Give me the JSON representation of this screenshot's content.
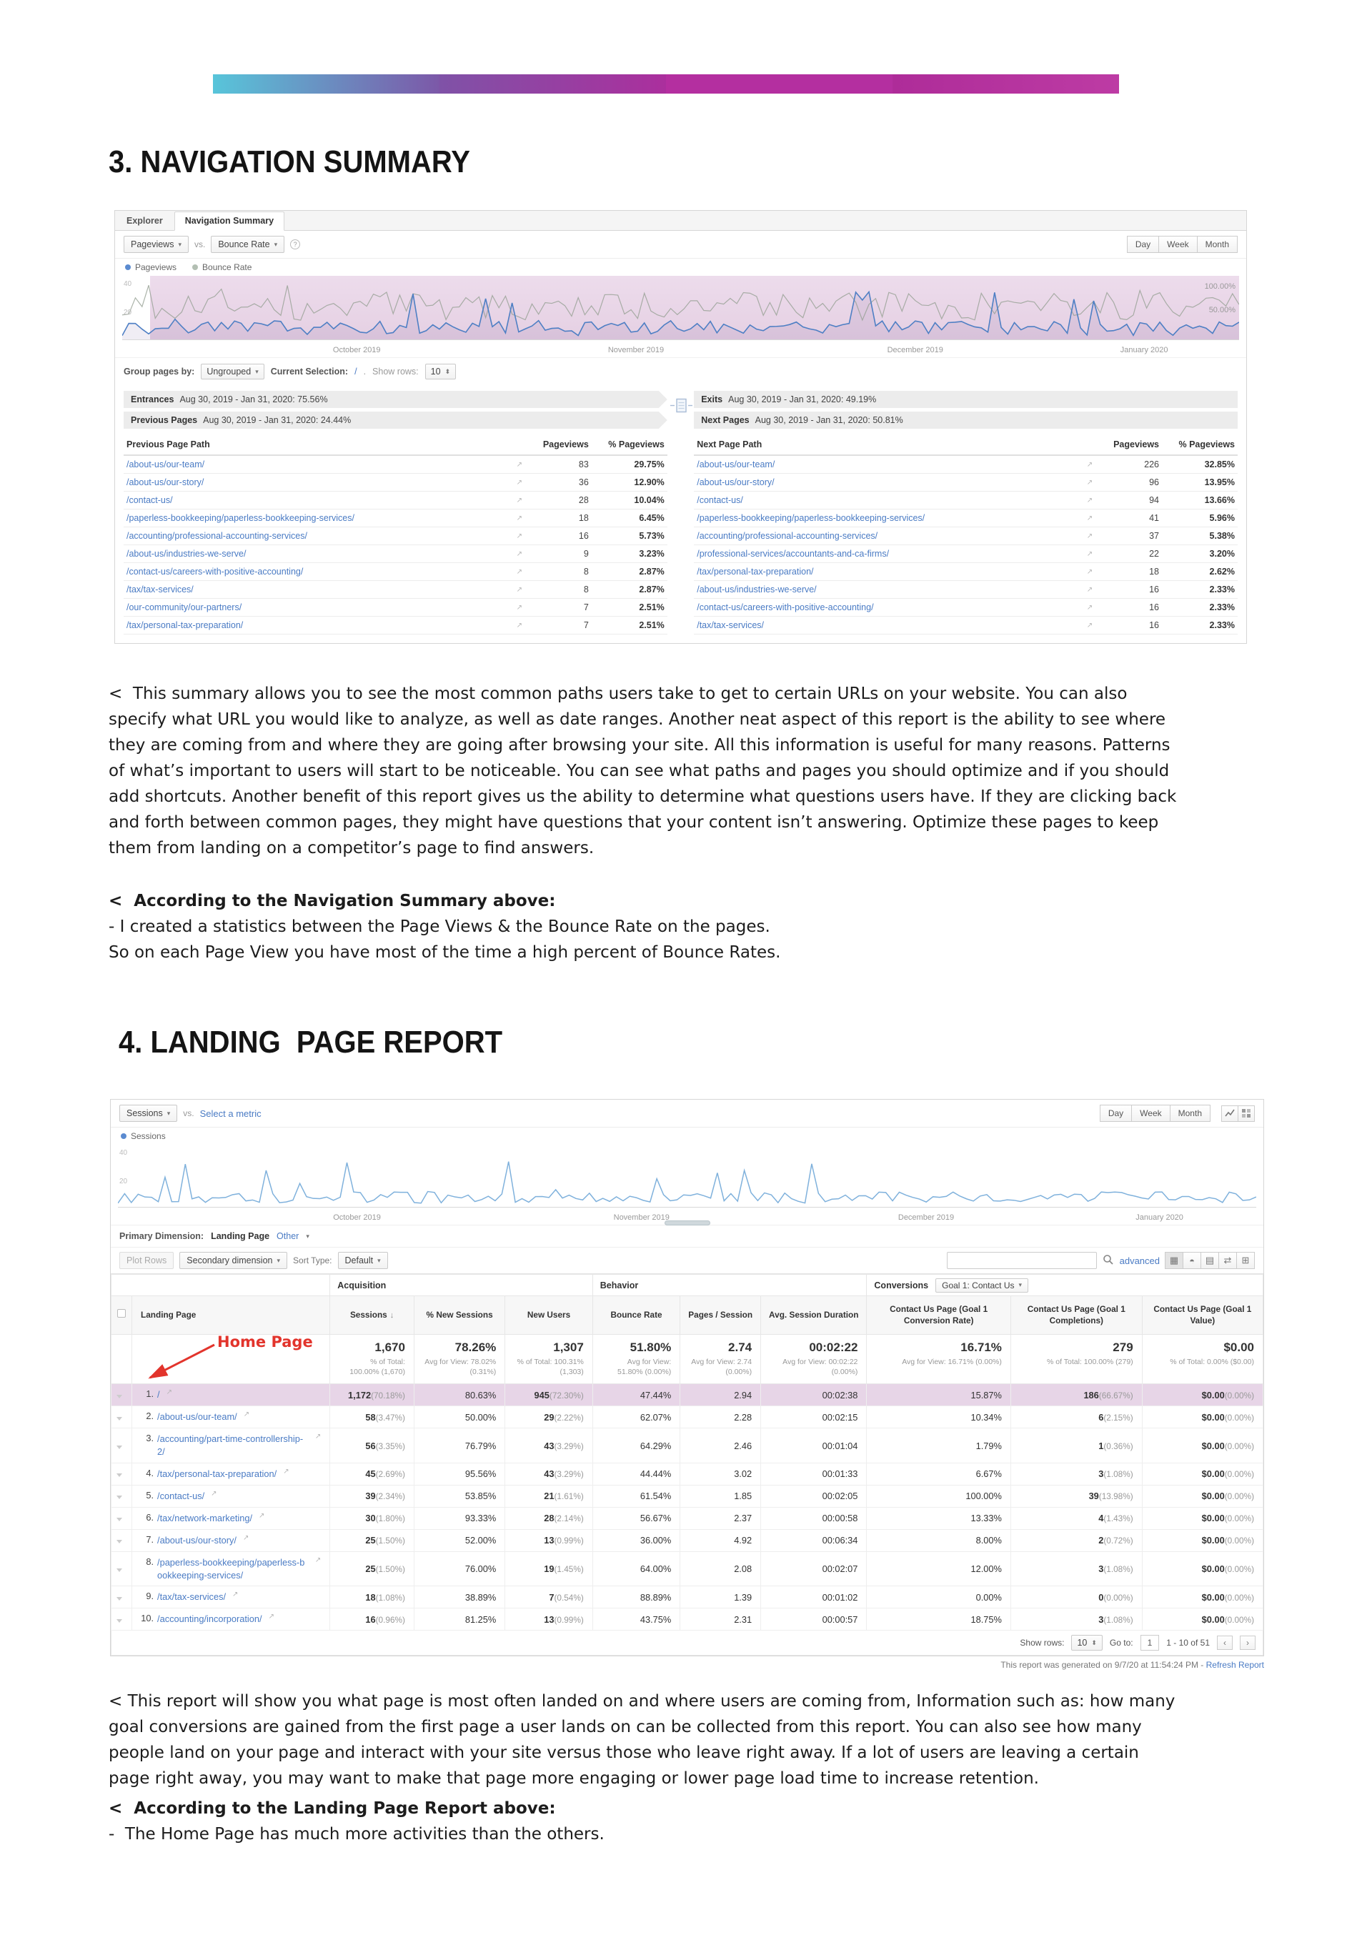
{
  "page": {
    "section3_heading": "3. NAVIGATION SUMMARY",
    "section4_heading": "4. LANDING  PAGE REPORT"
  },
  "nav": {
    "tabs": {
      "explorer": "Explorer",
      "navigation_summary": "Navigation Summary"
    },
    "toolbar": {
      "metric1": "Pageviews",
      "vs": "vs.",
      "metric2": "Bounce Rate",
      "info": "?",
      "day": "Day",
      "week": "Week",
      "month": "Month"
    },
    "legend": {
      "pageviews": "Pageviews",
      "bounce_rate": "Bounce Rate"
    },
    "chart": {
      "x_labels": [
        "October 2019",
        "November 2019",
        "December 2019",
        "January 2020"
      ],
      "y_left": [
        "40",
        "20"
      ],
      "y_right": [
        "100.00%",
        "50.00%"
      ]
    },
    "controls": {
      "group_label": "Group pages by:",
      "group_value": "Ungrouped",
      "selection_label": "Current Selection:",
      "selection_value": "/",
      "selection_dot": ".",
      "show_rows_label": "Show rows:",
      "show_rows_value": "10"
    },
    "banners": {
      "entrances_label": "Entrances",
      "entrances_value": "Aug 30, 2019 - Jan 31, 2020: 75.56%",
      "exits_label": "Exits",
      "exits_value": "Aug 30, 2019 - Jan 31, 2020: 49.19%",
      "prev_label": "Previous Pages",
      "prev_value": "Aug 30, 2019 - Jan 31, 2020: 24.44%",
      "next_label": "Next Pages",
      "next_value": "Aug 30, 2019 - Jan 31, 2020: 50.81%"
    },
    "prev_table": {
      "col_path": "Previous Page Path",
      "col_pageviews": "Pageviews",
      "col_pct": "% Pageviews",
      "rows": [
        {
          "path": "/about-us/our-team/",
          "pageviews": "83",
          "pct": "29.75%"
        },
        {
          "path": "/about-us/our-story/",
          "pageviews": "36",
          "pct": "12.90%"
        },
        {
          "path": "/contact-us/",
          "pageviews": "28",
          "pct": "10.04%"
        },
        {
          "path": "/paperless-bookkeeping/paperless-bookkeeping-services/",
          "pageviews": "18",
          "pct": "6.45%"
        },
        {
          "path": "/accounting/professional-accounting-services/",
          "pageviews": "16",
          "pct": "5.73%"
        },
        {
          "path": "/about-us/industries-we-serve/",
          "pageviews": "9",
          "pct": "3.23%"
        },
        {
          "path": "/contact-us/careers-with-positive-accounting/",
          "pageviews": "8",
          "pct": "2.87%"
        },
        {
          "path": "/tax/tax-services/",
          "pageviews": "8",
          "pct": "2.87%"
        },
        {
          "path": "/our-community/our-partners/",
          "pageviews": "7",
          "pct": "2.51%"
        },
        {
          "path": "/tax/personal-tax-preparation/",
          "pageviews": "7",
          "pct": "2.51%"
        }
      ]
    },
    "next_table": {
      "col_path": "Next Page Path",
      "col_pageviews": "Pageviews",
      "col_pct": "% Pageviews",
      "rows": [
        {
          "path": "/about-us/our-team/",
          "pageviews": "226",
          "pct": "32.85%"
        },
        {
          "path": "/about-us/our-story/",
          "pageviews": "96",
          "pct": "13.95%"
        },
        {
          "path": "/contact-us/",
          "pageviews": "94",
          "pct": "13.66%"
        },
        {
          "path": "/paperless-bookkeeping/paperless-bookkeeping-services/",
          "pageviews": "41",
          "pct": "5.96%"
        },
        {
          "path": "/accounting/professional-accounting-services/",
          "pageviews": "37",
          "pct": "5.38%"
        },
        {
          "path": "/professional-services/accountants-and-ca-firms/",
          "pageviews": "22",
          "pct": "3.20%"
        },
        {
          "path": "/tax/personal-tax-preparation/",
          "pageviews": "18",
          "pct": "2.62%"
        },
        {
          "path": "/about-us/industries-we-serve/",
          "pageviews": "16",
          "pct": "2.33%"
        },
        {
          "path": "/contact-us/careers-with-positive-accounting/",
          "pageviews": "16",
          "pct": "2.33%"
        },
        {
          "path": "/tax/tax-services/",
          "pageviews": "16",
          "pct": "2.33%"
        }
      ]
    }
  },
  "commentary3": {
    "p1": "<  This summary allows you to see the most common paths users take to get to certain URLs on your website. You can also specify what URL you would like to analyze, as well as date ranges. Another neat aspect of this report is the ability to see where they are coming from and where they are going after browsing your site. All this information is useful for many reasons. Patterns of what’s important to users will start to be noticeable. You can see what paths and pages you should optimize and if you should add shortcuts. Another benefit of this report gives us the ability to determine what questions users have. If they are clicking back and forth between common pages, they might have questions that your content isn’t answering. Optimize these pages to keep them from landing on a competitor’s page to find answers.",
    "p2_heading": "<  According to the Navigation Summary above:",
    "p2_line1": "- I created a statistics between the Page Views & the Bounce Rate on the pages.",
    "p2_line2": "So on each Page View you have most of the time a high percent of Bounce Rates."
  },
  "landing": {
    "toolbar": {
      "metric1": "Sessions",
      "vs": "vs.",
      "select_metric": "Select a metric",
      "day": "Day",
      "week": "Week",
      "month": "Month"
    },
    "legend": {
      "sessions": "Sessions"
    },
    "chart": {
      "x_labels": [
        "October 2019",
        "November 2019",
        "December 2019",
        "January 2020"
      ],
      "y_left": [
        "40",
        "20"
      ]
    },
    "primary_dimension": {
      "label": "Primary Dimension:",
      "active": "Landing Page",
      "other": "Other"
    },
    "controls": {
      "plot_rows": "Plot Rows",
      "secondary_dimension": "Secondary dimension",
      "sort_type_label": "Sort Type:",
      "sort_type_value": "Default",
      "advanced": "advanced"
    },
    "annotation": "Home Page",
    "table": {
      "group_acquisition": "Acquisition",
      "group_behavior": "Behavior",
      "group_conversions": "Conversions",
      "goal_selector": "Goal 1: Contact Us",
      "col_landing_page": "Landing Page",
      "col_sessions": "Sessions",
      "col_new_sessions": "% New Sessions",
      "col_new_users": "New Users",
      "col_bounce": "Bounce Rate",
      "col_pages_session": "Pages / Session",
      "col_duration": "Avg. Session Duration",
      "col_conv_rate": "Contact Us Page (Goal 1 Conversion Rate)",
      "col_completions": "Contact Us Page (Goal 1 Completions)",
      "col_value": "Contact Us Page (Goal 1 Value)",
      "summary": {
        "sessions": "1,670",
        "sessions_sub": "% of Total: 100.00% (1,670)",
        "new_sessions": "78.26%",
        "new_sessions_sub": "Avg for View: 78.02% (0.31%)",
        "new_users": "1,307",
        "new_users_sub": "% of Total: 100.31% (1,303)",
        "bounce": "51.80%",
        "bounce_sub": "Avg for View: 51.80% (0.00%)",
        "pages": "2.74",
        "pages_sub": "Avg for View: 2.74 (0.00%)",
        "duration": "00:02:22",
        "duration_sub": "Avg for View: 00:02:22 (0.00%)",
        "conv_rate": "16.71%",
        "conv_rate_sub": "Avg for View: 16.71% (0.00%)",
        "completions": "279",
        "completions_sub": "% of Total: 100.00% (279)",
        "value": "$0.00",
        "value_sub": "% of Total: 0.00% ($0.00)"
      },
      "rows": [
        {
          "n": "1.",
          "path": "/",
          "sessions": "1,172",
          "sessions_pct": "(70.18%)",
          "new_sessions": "80.63%",
          "new_users": "945",
          "new_users_pct": "(72.30%)",
          "bounce": "47.44%",
          "pages": "2.94",
          "duration": "00:02:38",
          "conv_rate": "15.87%",
          "completions": "186",
          "completions_pct": "(66.67%)",
          "value": "$0.00",
          "value_pct": "(0.00%)"
        },
        {
          "n": "2.",
          "path": "/about-us/our-team/",
          "sessions": "58",
          "sessions_pct": "(3.47%)",
          "new_sessions": "50.00%",
          "new_users": "29",
          "new_users_pct": "(2.22%)",
          "bounce": "62.07%",
          "pages": "2.28",
          "duration": "00:02:15",
          "conv_rate": "10.34%",
          "completions": "6",
          "completions_pct": "(2.15%)",
          "value": "$0.00",
          "value_pct": "(0.00%)"
        },
        {
          "n": "3.",
          "path": "/accounting/part-time-controllership-2/",
          "sessions": "56",
          "sessions_pct": "(3.35%)",
          "new_sessions": "76.79%",
          "new_users": "43",
          "new_users_pct": "(3.29%)",
          "bounce": "64.29%",
          "pages": "2.46",
          "duration": "00:01:04",
          "conv_rate": "1.79%",
          "completions": "1",
          "completions_pct": "(0.36%)",
          "value": "$0.00",
          "value_pct": "(0.00%)"
        },
        {
          "n": "4.",
          "path": "/tax/personal-tax-preparation/",
          "sessions": "45",
          "sessions_pct": "(2.69%)",
          "new_sessions": "95.56%",
          "new_users": "43",
          "new_users_pct": "(3.29%)",
          "bounce": "44.44%",
          "pages": "3.02",
          "duration": "00:01:33",
          "conv_rate": "6.67%",
          "completions": "3",
          "completions_pct": "(1.08%)",
          "value": "$0.00",
          "value_pct": "(0.00%)"
        },
        {
          "n": "5.",
          "path": "/contact-us/",
          "sessions": "39",
          "sessions_pct": "(2.34%)",
          "new_sessions": "53.85%",
          "new_users": "21",
          "new_users_pct": "(1.61%)",
          "bounce": "61.54%",
          "pages": "1.85",
          "duration": "00:02:05",
          "conv_rate": "100.00%",
          "completions": "39",
          "completions_pct": "(13.98%)",
          "value": "$0.00",
          "value_pct": "(0.00%)"
        },
        {
          "n": "6.",
          "path": "/tax/network-marketing/",
          "sessions": "30",
          "sessions_pct": "(1.80%)",
          "new_sessions": "93.33%",
          "new_users": "28",
          "new_users_pct": "(2.14%)",
          "bounce": "56.67%",
          "pages": "2.37",
          "duration": "00:00:58",
          "conv_rate": "13.33%",
          "completions": "4",
          "completions_pct": "(1.43%)",
          "value": "$0.00",
          "value_pct": "(0.00%)"
        },
        {
          "n": "7.",
          "path": "/about-us/our-story/",
          "sessions": "25",
          "sessions_pct": "(1.50%)",
          "new_sessions": "52.00%",
          "new_users": "13",
          "new_users_pct": "(0.99%)",
          "bounce": "36.00%",
          "pages": "4.92",
          "duration": "00:06:34",
          "conv_rate": "8.00%",
          "completions": "2",
          "completions_pct": "(0.72%)",
          "value": "$0.00",
          "value_pct": "(0.00%)"
        },
        {
          "n": "8.",
          "path": "/paperless-bookkeeping/paperless-bookkeeping-services/",
          "sessions": "25",
          "sessions_pct": "(1.50%)",
          "new_sessions": "76.00%",
          "new_users": "19",
          "new_users_pct": "(1.45%)",
          "bounce": "64.00%",
          "pages": "2.08",
          "duration": "00:02:07",
          "conv_rate": "12.00%",
          "completions": "3",
          "completions_pct": "(1.08%)",
          "value": "$0.00",
          "value_pct": "(0.00%)"
        },
        {
          "n": "9.",
          "path": "/tax/tax-services/",
          "sessions": "18",
          "sessions_pct": "(1.08%)",
          "new_sessions": "38.89%",
          "new_users": "7",
          "new_users_pct": "(0.54%)",
          "bounce": "88.89%",
          "pages": "1.39",
          "duration": "00:01:02",
          "conv_rate": "0.00%",
          "completions": "0",
          "completions_pct": "(0.00%)",
          "value": "$0.00",
          "value_pct": "(0.00%)"
        },
        {
          "n": "10.",
          "path": "/accounting/incorporation/",
          "sessions": "16",
          "sessions_pct": "(0.96%)",
          "new_sessions": "81.25%",
          "new_users": "13",
          "new_users_pct": "(0.99%)",
          "bounce": "43.75%",
          "pages": "2.31",
          "duration": "00:00:57",
          "conv_rate": "18.75%",
          "completions": "3",
          "completions_pct": "(1.08%)",
          "value": "$0.00",
          "value_pct": "(0.00%)"
        }
      ],
      "footer": {
        "show_rows_label": "Show rows:",
        "show_rows_value": "10",
        "goto_label": "Go to:",
        "goto_value": "1",
        "range": "1 - 10 of 51",
        "prev": "‹",
        "next": "›"
      }
    },
    "generated_note": "This report was generated on 9/7/20 at 11:54:24 PM - ",
    "refresh_link": "Refresh Report"
  },
  "commentary4": {
    "p1": "< This report will show you what page is most often landed on and where users are coming from, Information such as: how many goal conversions are gained from the first page a user lands on can be collected from this report. You can also see how many people land on your page and interact with your site versus those who leave right away. If a lot of users are leaving a certain page right away, you may want to make that page more engaging or lower page load time to increase retention.",
    "p2_heading": "<  According to the Landing Page Report above:",
    "p2_line1": "-  The Home Page has much more activities than the others."
  }
}
